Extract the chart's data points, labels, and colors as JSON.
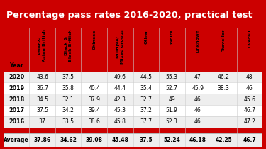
{
  "title": "Percentage pass rates 2016-2020, practical test",
  "title_bg": "#cc0000",
  "title_color": "#ffffff",
  "border_color": "#cc0000",
  "bg_color": "#ffffff",
  "columns": [
    "Asian&\nAsian British",
    "Black &\nBlack British",
    "Chinese",
    "Multiple/\nMixed groups",
    "Other",
    "White",
    "Unknown",
    "Traveller",
    "Overall"
  ],
  "rows": {
    "2020": [
      "43.6",
      "37.5",
      "",
      "49.6",
      "44.5",
      "55.3",
      "47",
      "46.2",
      "48"
    ],
    "2019": [
      "36.7",
      "35.8",
      "40.4",
      "44.4",
      "35.4",
      "52.7",
      "45.9",
      "38.3",
      "46"
    ],
    "2018": [
      "34.5",
      "32.1",
      "37.9",
      "42.3",
      "32.7",
      "49",
      "46",
      "",
      "45.6"
    ],
    "2017": [
      "37.5",
      "34.2",
      "39.4",
      "45.3",
      "37.2",
      "51.9",
      "46",
      "",
      "46.7"
    ],
    "2016": [
      "37",
      "33.5",
      "38.6",
      "45.8",
      "37.7",
      "52.3",
      "46",
      "",
      "47.2"
    ]
  },
  "year_order": [
    "2020",
    "2019",
    "2018",
    "2017",
    "2016"
  ],
  "averages": [
    "37.86",
    "34.62",
    "39.08",
    "45.48",
    "37.5",
    "52.24",
    "46.18",
    "42.25",
    "46.7"
  ],
  "odd_row_bg": "#eeeeee",
  "even_row_bg": "#ffffff"
}
